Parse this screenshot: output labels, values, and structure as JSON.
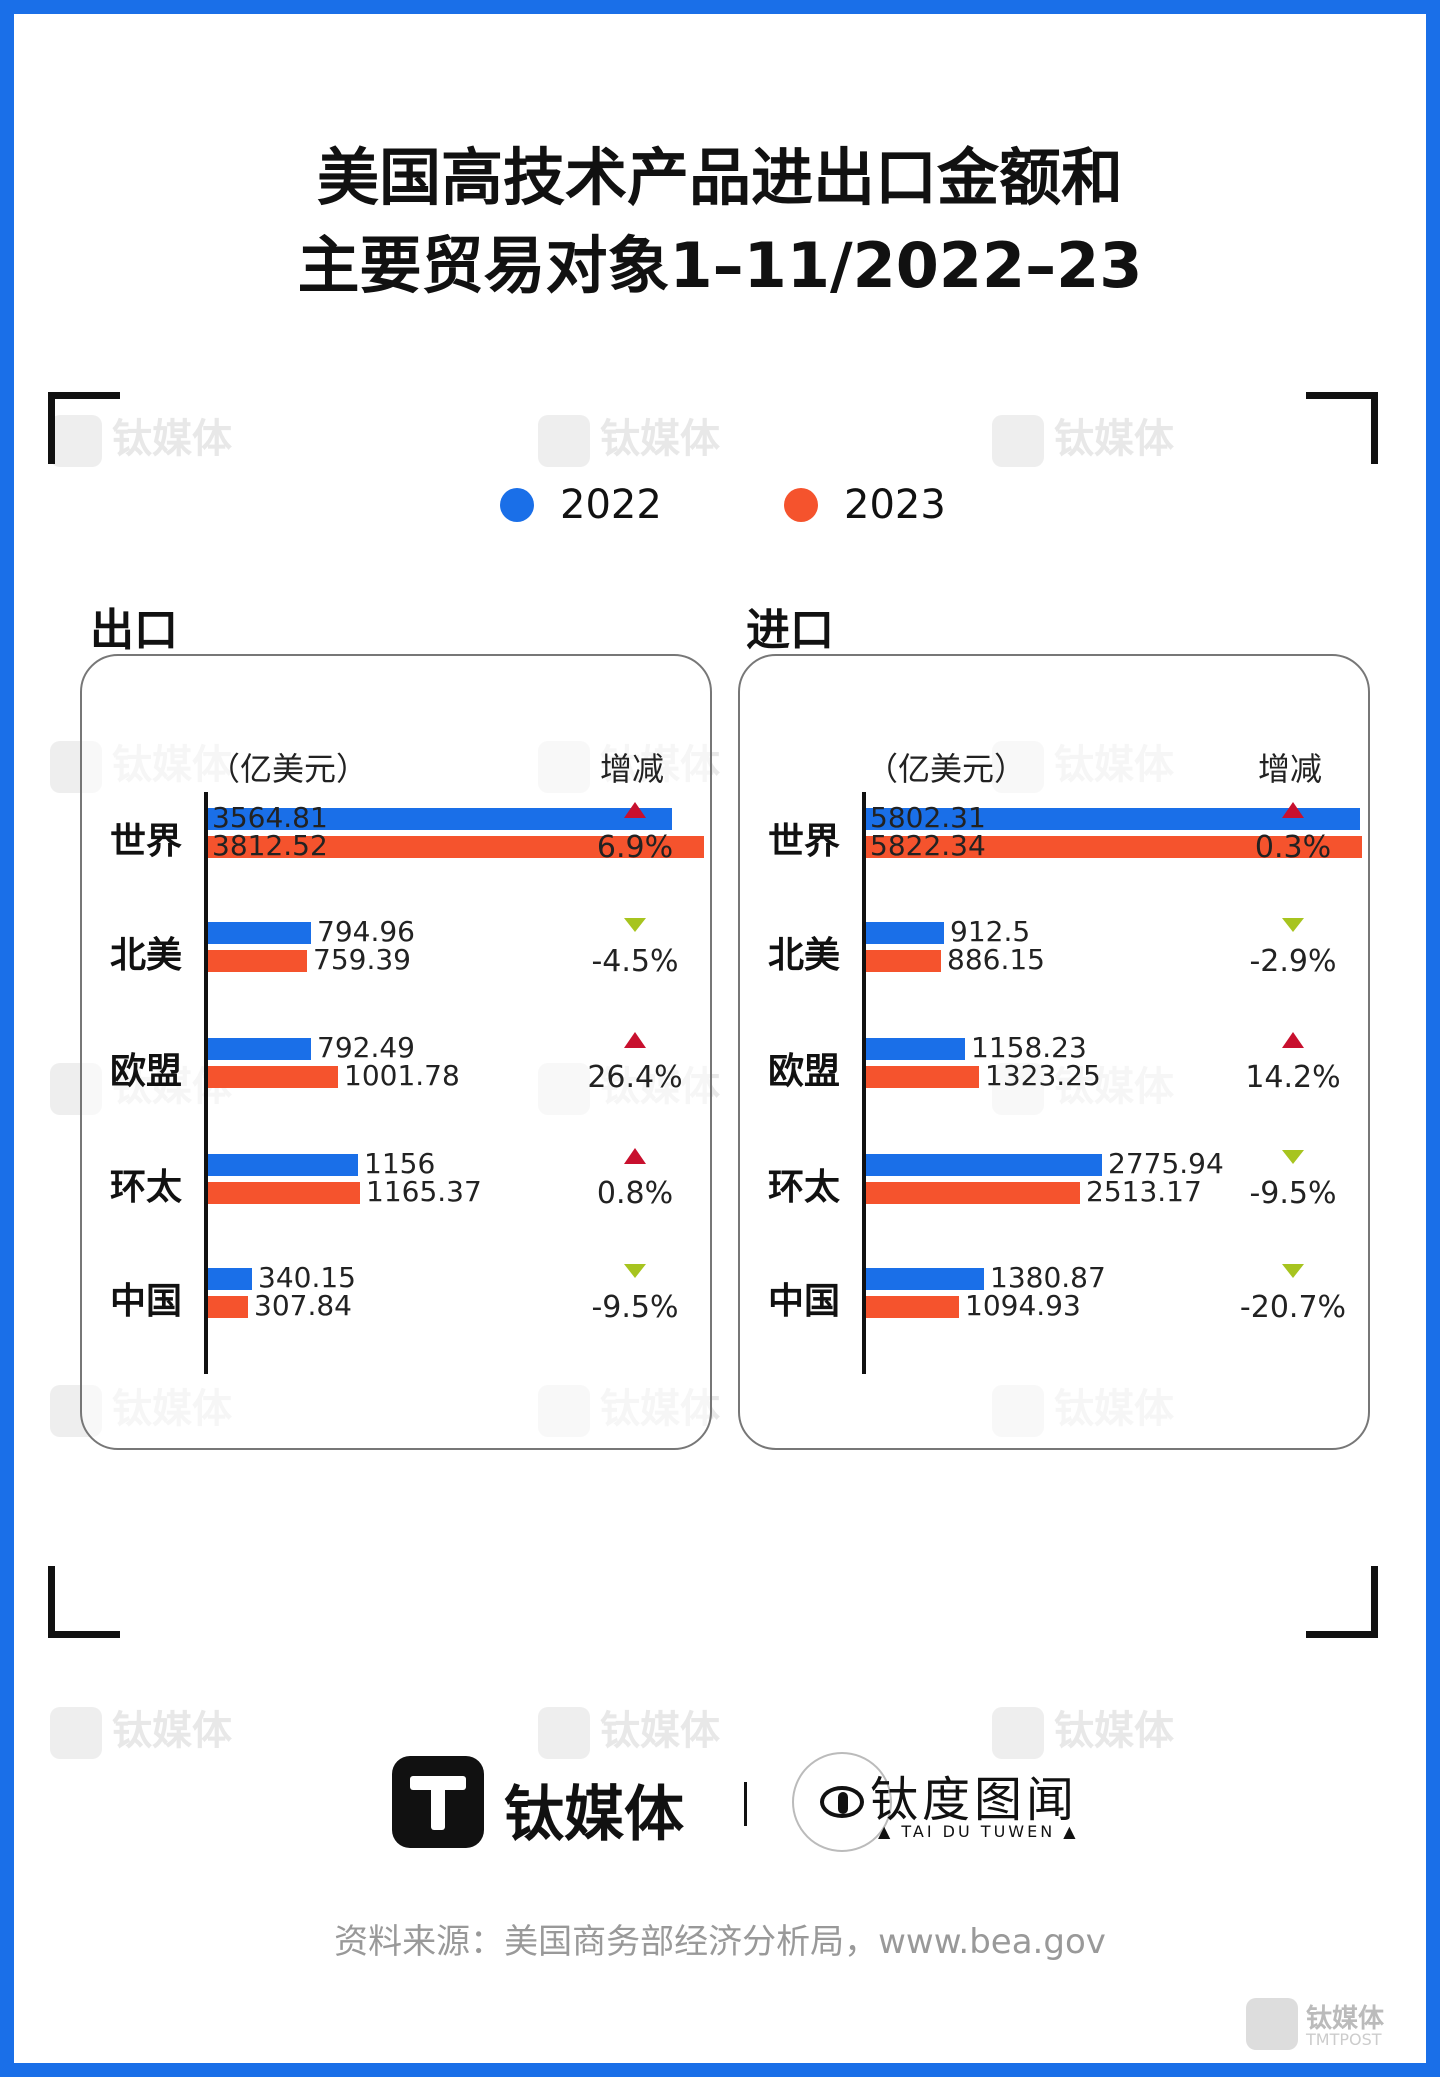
{
  "title_line1": "美国高技术产品进出口金额和",
  "title_line2": "主要贸易对象1–11/2022–23",
  "legend": [
    {
      "label": "2022",
      "color": "#1a6fe8"
    },
    {
      "label": "2023",
      "color": "#f5532d"
    }
  ],
  "watermark_text": "钛媒体",
  "watermark_text2": "钛度图闻",
  "chart_data": [
    {
      "type": "bar",
      "title": "出口",
      "unit_label": "（亿美元）",
      "change_header": "增减",
      "categories": [
        "世界",
        "北美",
        "欧盟",
        "环太",
        "中国"
      ],
      "series": [
        {
          "name": "2022",
          "values": [
            3564.81,
            794.96,
            792.49,
            1156,
            340.15
          ]
        },
        {
          "name": "2023",
          "values": [
            3812.52,
            759.39,
            1001.78,
            1165.37,
            307.84
          ]
        }
      ],
      "labels_2022": [
        "3564.81",
        "794.96",
        "792.49",
        "1156",
        "340.15"
      ],
      "labels_2023": [
        "3812.52",
        "759.39",
        "1001.78",
        "1165.37",
        "307.84"
      ],
      "changes": [
        "6.9%",
        "-4.5%",
        "26.4%",
        "0.8%",
        "-9.5%"
      ],
      "directions": [
        "up",
        "down",
        "up",
        "up",
        "down"
      ]
    },
    {
      "type": "bar",
      "title": "进口",
      "unit_label": "（亿美元）",
      "change_header": "增减",
      "categories": [
        "世界",
        "北美",
        "欧盟",
        "环太",
        "中国"
      ],
      "series": [
        {
          "name": "2022",
          "values": [
            5802.31,
            912.5,
            1158.23,
            2775.94,
            1380.87
          ]
        },
        {
          "name": "2023",
          "values": [
            5822.34,
            886.15,
            1323.25,
            2513.17,
            1094.93
          ]
        }
      ],
      "labels_2022": [
        "5802.31",
        "912.5",
        "1158.23",
        "2775.94",
        "1380.87"
      ],
      "labels_2023": [
        "5822.34",
        "886.15",
        "1323.25",
        "2513.17",
        "1094.93"
      ],
      "changes": [
        "0.3%",
        "-2.9%",
        "14.2%",
        "-9.5%",
        "-20.7%"
      ],
      "directions": [
        "up",
        "down",
        "up",
        "down",
        "down"
      ]
    }
  ],
  "brand1": "钛媒体",
  "brand2": "钛度图闻",
  "brand2_sub": "▲ TAI DU TUWEN ▲",
  "source": "资料来源：美国商务部经济分析局，www.bea.gov",
  "corner_brand": "钛媒体",
  "corner_brand_sub": "TMTPOST"
}
